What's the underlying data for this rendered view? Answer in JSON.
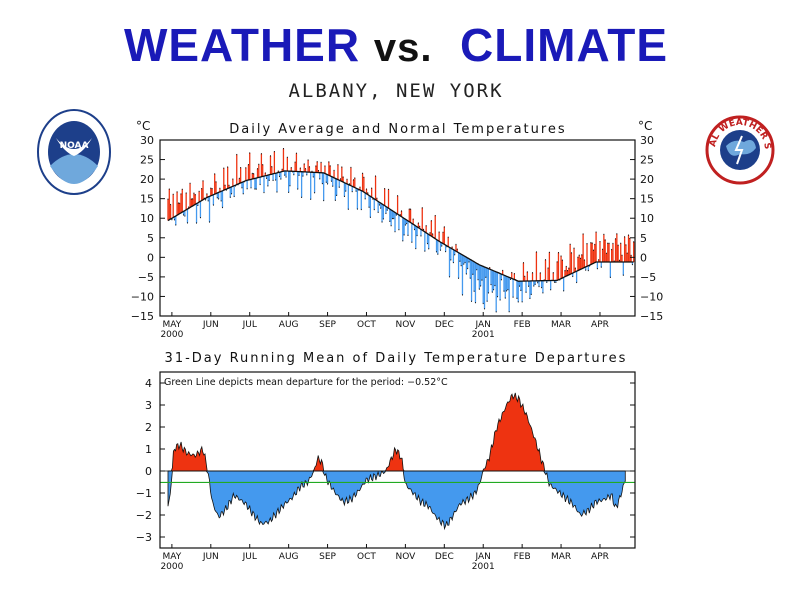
{
  "header": {
    "title_left": "WEATHER",
    "title_vs": "vs.",
    "title_right": "CLIMATE",
    "location": "ALBANY, NEW YORK"
  },
  "logos": {
    "left_text": "NOAA",
    "right_text": "NATIONAL WEATHER SERVICE"
  },
  "colors": {
    "above": "#ee3311",
    "below": "#4499ee",
    "mean_line": "#22aa22",
    "title": "#1a1ab8"
  },
  "chart_data": [
    {
      "type": "area",
      "title": "Daily Average and Normal Temperatures",
      "ylabel_left": "°C",
      "ylabel_right": "°C",
      "ylim": [
        -15,
        30
      ],
      "yticks": [
        30,
        25,
        20,
        15,
        10,
        5,
        0,
        -5,
        -10,
        -15
      ],
      "ytick_labels": [
        "30",
        "25",
        "20",
        "15",
        "10",
        "5",
        "0",
        "−5",
        "−10",
        "−15"
      ],
      "months": [
        "MAY",
        "JUN",
        "JUL",
        "AUG",
        "SEP",
        "OCT",
        "NOV",
        "DEC",
        "JAN",
        "FEB",
        "MAR",
        "APR"
      ],
      "year_labels": {
        "MAY": "2000",
        "JAN": "2001"
      },
      "series": [
        {
          "name": "Normal",
          "values": [
            9.4,
            15.3,
            19.6,
            22.1,
            21.6,
            16.9,
            10.4,
            3.9,
            -1.9,
            -6.1,
            -5.9,
            -1.2
          ]
        },
        {
          "name": "Daily Average",
          "values": [
            12.8,
            15.2,
            20.7,
            21.8,
            20.8,
            16.9,
            8.8,
            4.6,
            -8.4,
            -7.9,
            -3.6,
            2.0
          ]
        }
      ]
    },
    {
      "type": "area",
      "title": "31-Day Running Mean of Daily Temperature Departures",
      "annotation": "Green Line depicts mean departure for the period:  −0.52°C",
      "mean_departure": -0.52,
      "ylim": [
        -3.5,
        4.5
      ],
      "yticks": [
        4,
        3,
        2,
        1,
        0,
        -1,
        -2,
        -3
      ],
      "ytick_labels": [
        "4",
        "3",
        "2",
        "1",
        "0",
        "−1",
        "−2",
        "−3"
      ],
      "months": [
        "MAY",
        "JUN",
        "JUL",
        "AUG",
        "SEP",
        "OCT",
        "NOV",
        "DEC",
        "JAN",
        "FEB",
        "MAR",
        "APR"
      ],
      "year_labels": {
        "MAY": "2000",
        "JAN": "2001"
      },
      "keypoints": [
        [
          0,
          -1.6
        ],
        [
          0.05,
          -1.2
        ],
        [
          0.15,
          1.0
        ],
        [
          0.3,
          1.2
        ],
        [
          0.5,
          0.8
        ],
        [
          0.7,
          0.7
        ],
        [
          0.9,
          1.0
        ],
        [
          1.0,
          0.2
        ],
        [
          1.15,
          -1.5
        ],
        [
          1.3,
          -2.1
        ],
        [
          1.5,
          -1.7
        ],
        [
          1.7,
          -1.1
        ],
        [
          2.0,
          -1.5
        ],
        [
          2.2,
          -2.0
        ],
        [
          2.4,
          -2.4
        ],
        [
          2.6,
          -2.3
        ],
        [
          2.8,
          -1.9
        ],
        [
          3.0,
          -1.5
        ],
        [
          3.2,
          -1.2
        ],
        [
          3.4,
          -0.7
        ],
        [
          3.6,
          -0.5
        ],
        [
          3.75,
          0.0
        ],
        [
          3.85,
          0.6
        ],
        [
          3.95,
          0.4
        ],
        [
          4.05,
          -0.3
        ],
        [
          4.3,
          -1.0
        ],
        [
          4.5,
          -1.4
        ],
        [
          4.7,
          -1.3
        ],
        [
          4.9,
          -0.9
        ],
        [
          5.1,
          -0.4
        ],
        [
          5.4,
          -0.2
        ],
        [
          5.6,
          0.0
        ],
        [
          5.75,
          0.6
        ],
        [
          5.85,
          1.0
        ],
        [
          6.0,
          0.6
        ],
        [
          6.1,
          -0.6
        ],
        [
          6.3,
          -1.0
        ],
        [
          6.5,
          -1.4
        ],
        [
          6.7,
          -1.6
        ],
        [
          6.85,
          -2.0
        ],
        [
          7.0,
          -2.3
        ],
        [
          7.15,
          -2.5
        ],
        [
          7.3,
          -2.1
        ],
        [
          7.5,
          -1.5
        ],
        [
          7.7,
          -1.3
        ],
        [
          7.9,
          -1.0
        ],
        [
          8.0,
          -0.6
        ],
        [
          8.1,
          0.0
        ],
        [
          8.25,
          0.6
        ],
        [
          8.45,
          2.0
        ],
        [
          8.7,
          3.0
        ],
        [
          8.85,
          3.45
        ],
        [
          9.0,
          3.3
        ],
        [
          9.2,
          2.6
        ],
        [
          9.4,
          1.6
        ],
        [
          9.6,
          0.5
        ],
        [
          9.8,
          -0.6
        ],
        [
          10.0,
          -0.9
        ],
        [
          10.2,
          -1.2
        ],
        [
          10.4,
          -1.5
        ],
        [
          10.6,
          -2.0
        ],
        [
          10.8,
          -1.8
        ],
        [
          11.0,
          -1.4
        ],
        [
          11.2,
          -1.3
        ],
        [
          11.4,
          -1.1
        ],
        [
          11.5,
          -1.7
        ],
        [
          11.6,
          -1.3
        ],
        [
          11.75,
          -0.4
        ]
      ]
    }
  ]
}
